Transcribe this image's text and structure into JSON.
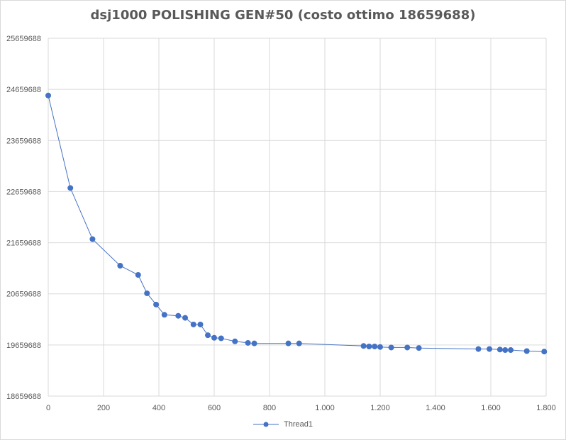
{
  "chart_data": {
    "type": "line",
    "title": "dsj1000 POLISHING GEN#50 (costo ottimo 18659688)",
    "xlabel": "",
    "ylabel": "",
    "xlim": [
      0,
      1800
    ],
    "ylim": [
      18659688,
      25659688
    ],
    "x_ticks": [
      0,
      200,
      400,
      600,
      800,
      1000,
      1200,
      1400,
      1600,
      1800
    ],
    "x_tick_labels": [
      "0",
      "200",
      "400",
      "600",
      "800",
      "1.000",
      "1.200",
      "1.400",
      "1.600",
      "1.800"
    ],
    "y_ticks": [
      18659688,
      19659688,
      20659688,
      21659688,
      22659688,
      23659688,
      24659688,
      25659688
    ],
    "y_tick_labels": [
      "18659688",
      "19659688",
      "20659688",
      "21659688",
      "22659688",
      "23659688",
      "24659688",
      "25659688"
    ],
    "grid": true,
    "legend_position": "bottom",
    "colors": {
      "series": "#4472c4",
      "grid": "#d9d9d9",
      "text": "#595959"
    },
    "series": [
      {
        "name": "Thread1",
        "x": [
          0,
          80,
          160,
          260,
          325,
          357,
          390,
          420,
          470,
          495,
          525,
          550,
          577,
          600,
          625,
          675,
          722,
          745,
          868,
          907,
          1140,
          1160,
          1180,
          1200,
          1240,
          1298,
          1340,
          1555,
          1595,
          1633,
          1652,
          1672,
          1730,
          1793
        ],
        "y": [
          24540000,
          22730000,
          21730000,
          21210000,
          21030000,
          20670000,
          20450000,
          20250000,
          20230000,
          20190000,
          20060000,
          20060000,
          19850000,
          19800000,
          19790000,
          19730000,
          19700000,
          19690000,
          19690000,
          19690000,
          19640000,
          19630000,
          19630000,
          19620000,
          19610000,
          19610000,
          19600000,
          19580000,
          19580000,
          19570000,
          19560000,
          19560000,
          19540000,
          19530000
        ]
      }
    ]
  }
}
